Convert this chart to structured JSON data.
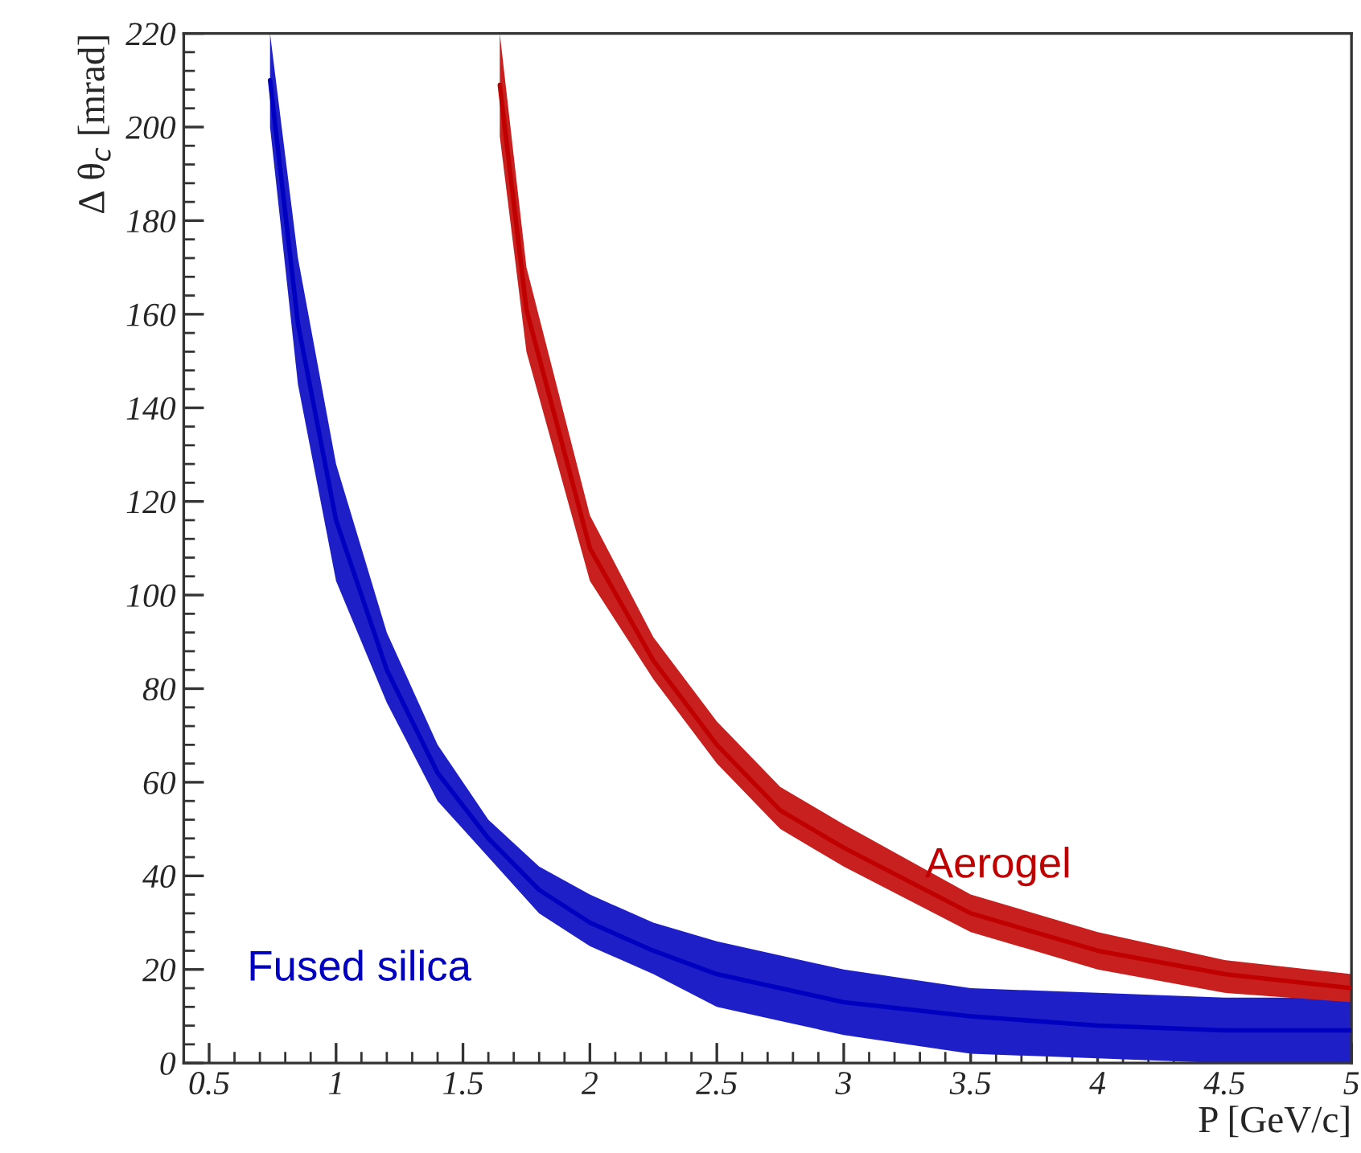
{
  "chart_data": {
    "type": "line",
    "xlabel": "P [GeV/c]",
    "ylabel": "Δ θ$_{c}$ [mrad]",
    "xlim": [
      0.4,
      5
    ],
    "ylim": [
      0,
      220
    ],
    "xticks": [
      0.5,
      1,
      1.5,
      2,
      2.5,
      3,
      3.5,
      4,
      4.5,
      5
    ],
    "yticks": [
      0,
      20,
      40,
      60,
      80,
      100,
      120,
      140,
      160,
      180,
      200,
      220
    ],
    "legend": false,
    "series": [
      {
        "name": "Fused silica",
        "color": "#0000c0",
        "x": [
          0.74,
          0.85,
          1,
          1.2,
          1.4,
          1.6,
          1.8,
          2,
          2.25,
          2.5,
          3,
          3.5,
          4,
          4.5,
          5
        ],
        "values": [
          210,
          158,
          116,
          84,
          62,
          48,
          37,
          30,
          24,
          19,
          13,
          10,
          8,
          7,
          7
        ],
        "lower": [
          200,
          145,
          103,
          77,
          56,
          44,
          32,
          25,
          19,
          12,
          6,
          2,
          1,
          0,
          0
        ],
        "upper": [
          220,
          172,
          128,
          92,
          68,
          52,
          42,
          36,
          30,
          26,
          20,
          16,
          15,
          14,
          14
        ]
      },
      {
        "name": "Aerogel",
        "color": "#c00000",
        "x": [
          1.645,
          1.75,
          2,
          2.25,
          2.5,
          2.75,
          3,
          3.5,
          4,
          4.5,
          5
        ],
        "values": [
          209,
          161,
          110,
          86,
          68,
          54,
          46,
          32,
          24,
          19,
          16
        ],
        "lower": [
          198,
          152,
          103,
          82,
          64,
          50,
          42,
          28,
          20,
          15,
          13
        ],
        "upper": [
          220,
          170,
          117,
          91,
          73,
          59,
          51,
          36,
          28,
          22,
          19
        ]
      }
    ]
  }
}
